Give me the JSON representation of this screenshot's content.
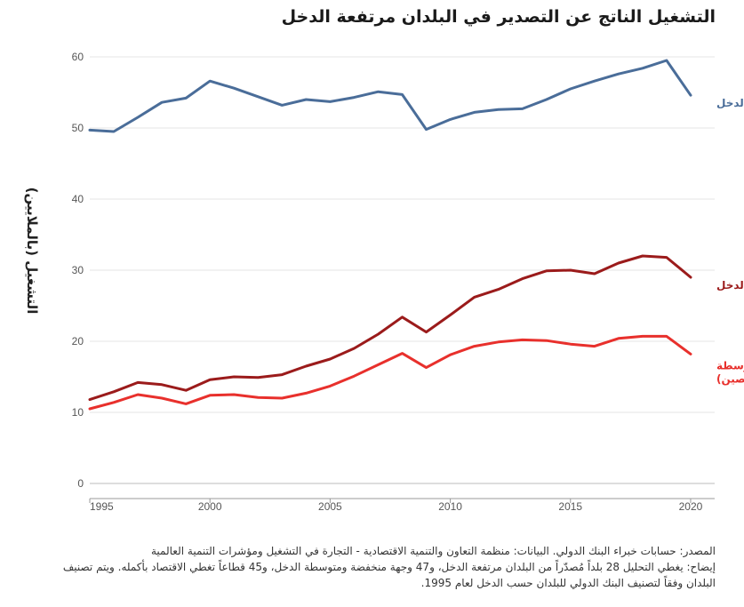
{
  "chart_data": {
    "type": "line",
    "title": "التشغيل الناتج عن التصدير في البلدان مرتفعة الدخل",
    "xlabel": "",
    "ylabel": "التشغيل (بالملايين)",
    "xlim": [
      1995,
      2021
    ],
    "ylim": [
      0,
      60
    ],
    "x_ticks": [
      1995,
      2000,
      2005,
      2010,
      2015,
      2020
    ],
    "y_ticks": [
      0,
      10,
      20,
      30,
      40,
      50,
      60
    ],
    "grid": true,
    "x": [
      1995,
      1996,
      1997,
      1998,
      1999,
      2000,
      2001,
      2002,
      2003,
      2004,
      2005,
      2006,
      2007,
      2008,
      2009,
      2010,
      2011,
      2012,
      2013,
      2014,
      2015,
      2016,
      2017,
      2018,
      2019,
      2020
    ],
    "series": [
      {
        "name": "البلدان المرتفعة الدخل",
        "label_lines": [
          "البلدان المرتفعة الدخل"
        ],
        "color": "#4a6d99",
        "values": [
          49.7,
          49.5,
          51.5,
          53.6,
          54.2,
          56.6,
          55.6,
          54.4,
          53.2,
          54.0,
          53.7,
          54.3,
          55.1,
          54.7,
          49.8,
          51.2,
          52.2,
          52.6,
          52.7,
          54.0,
          55.5,
          56.6,
          57.6,
          58.4,
          59.5,
          54.6
        ]
      },
      {
        "name": "البلدان المنخفضة والمتوسطة الدخل",
        "label_lines": [
          "البلدان المنخفضة والمتوسطة الدخل"
        ],
        "color": "#9b1b1b",
        "values": [
          11.8,
          12.9,
          14.2,
          13.9,
          13.1,
          14.6,
          15.0,
          14.9,
          15.3,
          16.5,
          17.5,
          19.0,
          21.0,
          23.4,
          21.3,
          23.7,
          26.2,
          27.3,
          28.8,
          29.9,
          30.0,
          29.5,
          31.0,
          32.0,
          31.8,
          29.0
        ]
      },
      {
        "name": "البلدان المنخفضة والمتوسطة الدخل (باستثناء الصين)",
        "label_lines": [
          "البلدان المنخفضة والمتوسطة",
          "الدخل (باستثناء الصين)"
        ],
        "color": "#e8302c",
        "values": [
          10.5,
          11.4,
          12.5,
          12.0,
          11.2,
          12.4,
          12.5,
          12.1,
          12.0,
          12.7,
          13.7,
          15.1,
          16.7,
          18.3,
          16.3,
          18.1,
          19.3,
          19.9,
          20.2,
          20.1,
          19.6,
          19.3,
          20.4,
          20.7,
          20.7,
          18.2
        ]
      }
    ]
  },
  "footer": {
    "line1": "المصدر: حسابات خبراء البنك الدولي. البيانات: منظمة التعاون والتنمية الاقتصادية - التجارة في التشغيل ومؤشرات التنمية العالمية",
    "line2": "إيضاح: يغطي التحليل 28 بلداً مُصدّراً من البلدان مرتفعة الدخل، و47 وجهة منخفضة ومتوسطة الدخل، و45 قطاعاً تغطي الاقتصاد بأكمله. ويتم تصنيف",
    "line3": "البلدان وفقاً لتصنيف البنك الدولي للبلدان حسب الدخل لعام 1995."
  }
}
